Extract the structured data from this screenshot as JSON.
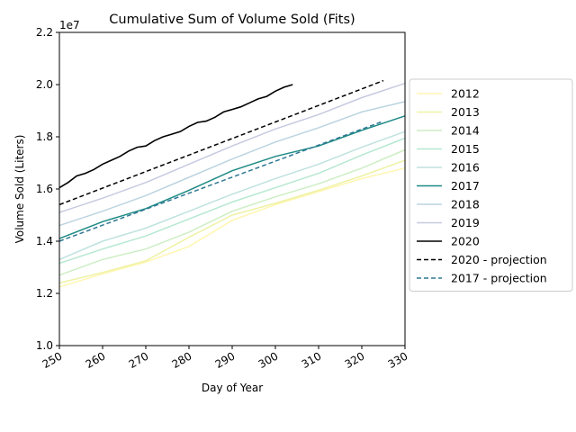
{
  "chart_data": {
    "type": "line",
    "title": "Cumulative Sum of Volume Sold (Fits)",
    "xlabel": "Day of Year",
    "ylabel": "Volume Sold (Liters)",
    "y_exponent_label": "1e7",
    "xlim": [
      250,
      330
    ],
    "ylim": [
      10000000,
      22000000
    ],
    "x_ticks": [
      250,
      260,
      270,
      280,
      290,
      300,
      310,
      320,
      330
    ],
    "x_tick_labels": [
      "250",
      "260",
      "270",
      "280",
      "290",
      "300",
      "310",
      "320",
      "330"
    ],
    "y_ticks": [
      10000000,
      12000000,
      14000000,
      16000000,
      18000000,
      20000000,
      22000000
    ],
    "y_tick_labels": [
      "1.0",
      "1.2",
      "1.4",
      "1.6",
      "1.8",
      "2.0",
      "2.2"
    ],
    "grid": false,
    "legend_placement": "outside-right",
    "series": [
      {
        "name": "2012",
        "color": "#fff6b0",
        "dash": "solid",
        "x": [
          250,
          260,
          270,
          280,
          290,
          300,
          310,
          320,
          330
        ],
        "values": [
          12250000,
          12750000,
          13200000,
          13800000,
          14800000,
          15400000,
          15900000,
          16400000,
          16800000
        ]
      },
      {
        "name": "2013",
        "color": "#eef2a4",
        "dash": "solid",
        "x": [
          250,
          260,
          270,
          280,
          290,
          300,
          310,
          320,
          330
        ],
        "values": [
          12400000,
          12800000,
          13250000,
          14150000,
          15000000,
          15450000,
          15950000,
          16500000,
          17100000
        ]
      },
      {
        "name": "2014",
        "color": "#cdeec4",
        "dash": "solid",
        "x": [
          250,
          260,
          270,
          280,
          290,
          300,
          310,
          320,
          330
        ],
        "values": [
          12700000,
          13300000,
          13700000,
          14350000,
          15150000,
          15700000,
          16200000,
          16800000,
          17500000
        ]
      },
      {
        "name": "2015",
        "color": "#b6e8d2",
        "dash": "solid",
        "x": [
          250,
          260,
          270,
          280,
          290,
          300,
          310,
          320,
          330
        ],
        "values": [
          13150000,
          13700000,
          14200000,
          14850000,
          15500000,
          16050000,
          16600000,
          17300000,
          17950000
        ]
      },
      {
        "name": "2016",
        "color": "#bfe2df",
        "dash": "solid",
        "x": [
          250,
          260,
          270,
          280,
          290,
          300,
          310,
          320,
          330
        ],
        "values": [
          13300000,
          14000000,
          14500000,
          15150000,
          15800000,
          16400000,
          16950000,
          17600000,
          18200000
        ]
      },
      {
        "name": "2017",
        "color": "#1d8a84",
        "dash": "solid",
        "x": [
          250,
          260,
          270,
          280,
          290,
          300,
          310,
          320,
          330
        ],
        "values": [
          14100000,
          14750000,
          15250000,
          15950000,
          16700000,
          17250000,
          17650000,
          18250000,
          18800000
        ]
      },
      {
        "name": "2018",
        "color": "#bcd4e0",
        "dash": "solid",
        "x": [
          250,
          260,
          270,
          280,
          290,
          300,
          310,
          320,
          330
        ],
        "values": [
          14600000,
          15150000,
          15750000,
          16450000,
          17150000,
          17800000,
          18350000,
          18950000,
          19350000
        ]
      },
      {
        "name": "2019",
        "color": "#c6cadf",
        "dash": "solid",
        "x": [
          250,
          260,
          270,
          280,
          290,
          300,
          310,
          320,
          330
        ],
        "values": [
          15100000,
          15650000,
          16250000,
          16950000,
          17650000,
          18300000,
          18850000,
          19500000,
          20050000
        ]
      },
      {
        "name": "2020",
        "color": "#000000",
        "dash": "solid",
        "x": [
          250,
          252,
          254,
          256,
          258,
          260,
          262,
          264,
          266,
          268,
          270,
          272,
          274,
          276,
          278,
          280,
          282,
          284,
          286,
          288,
          290,
          292,
          294,
          296,
          298,
          300,
          302,
          304
        ],
        "values": [
          16050000,
          16250000,
          16500000,
          16600000,
          16750000,
          16950000,
          17100000,
          17250000,
          17450000,
          17600000,
          17650000,
          17850000,
          18000000,
          18100000,
          18200000,
          18400000,
          18550000,
          18600000,
          18750000,
          18950000,
          19050000,
          19150000,
          19300000,
          19450000,
          19550000,
          19750000,
          19900000,
          20000000
        ]
      },
      {
        "name": "2020 - projection",
        "color": "#000000",
        "dash": "dashed",
        "x": [
          250,
          325
        ],
        "values": [
          15400000,
          20150000
        ]
      },
      {
        "name": "2017 - projection",
        "color": "#2f7894",
        "dash": "dashed",
        "x": [
          250,
          325
        ],
        "values": [
          14000000,
          18600000
        ]
      }
    ]
  }
}
